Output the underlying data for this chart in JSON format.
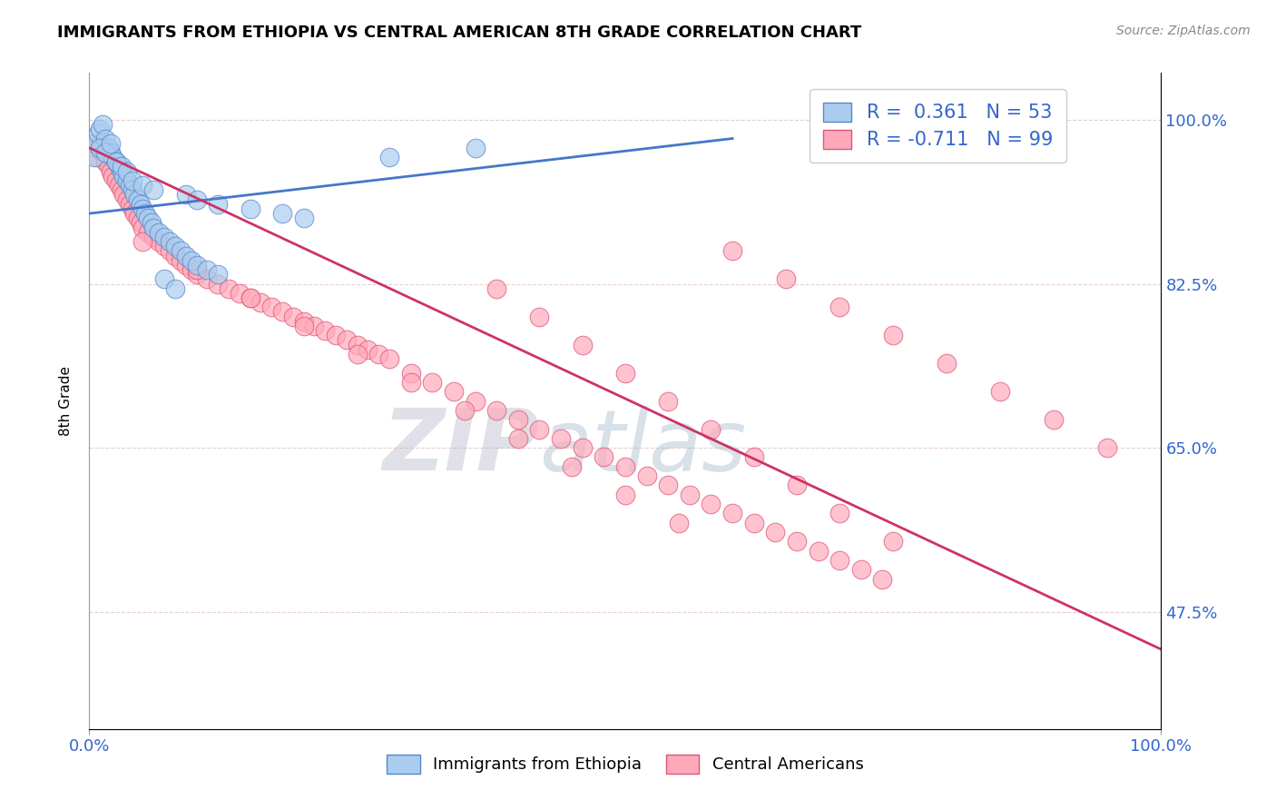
{
  "title": "IMMIGRANTS FROM ETHIOPIA VS CENTRAL AMERICAN 8TH GRADE CORRELATION CHART",
  "source_text": "Source: ZipAtlas.com",
  "ylabel": "8th Grade",
  "xlim": [
    0.0,
    1.0
  ],
  "ylim": [
    0.35,
    1.05
  ],
  "x_tick_labels": [
    "0.0%",
    "100.0%"
  ],
  "y_ticks": [
    0.475,
    0.65,
    0.825,
    1.0
  ],
  "y_tick_labels": [
    "47.5%",
    "65.0%",
    "82.5%",
    "100.0%"
  ],
  "watermark_zip": "ZIP",
  "watermark_atlas": "atlas",
  "blue_color": "#aaccee",
  "pink_color": "#ffaabb",
  "blue_edge_color": "#5588cc",
  "pink_edge_color": "#dd5577",
  "blue_line_color": "#4477cc",
  "pink_line_color": "#cc3366",
  "legend_r1": "R =  0.361",
  "legend_n1": "N = 53",
  "legend_r2": "R = -0.711",
  "legend_n2": "N = 99",
  "blue_scatter_x": [
    0.005,
    0.008,
    0.01,
    0.012,
    0.015,
    0.018,
    0.02,
    0.022,
    0.025,
    0.028,
    0.03,
    0.032,
    0.035,
    0.038,
    0.04,
    0.042,
    0.045,
    0.048,
    0.05,
    0.052,
    0.055,
    0.058,
    0.06,
    0.065,
    0.07,
    0.075,
    0.08,
    0.085,
    0.09,
    0.095,
    0.1,
    0.11,
    0.12,
    0.005,
    0.01,
    0.015,
    0.02,
    0.025,
    0.03,
    0.035,
    0.04,
    0.05,
    0.06,
    0.07,
    0.08,
    0.09,
    0.1,
    0.12,
    0.15,
    0.18,
    0.2,
    0.28,
    0.36
  ],
  "blue_scatter_y": [
    0.975,
    0.985,
    0.99,
    0.995,
    0.98,
    0.97,
    0.965,
    0.96,
    0.955,
    0.95,
    0.945,
    0.94,
    0.935,
    0.93,
    0.925,
    0.92,
    0.915,
    0.91,
    0.905,
    0.9,
    0.895,
    0.89,
    0.885,
    0.88,
    0.875,
    0.87,
    0.865,
    0.86,
    0.855,
    0.85,
    0.845,
    0.84,
    0.835,
    0.96,
    0.97,
    0.965,
    0.975,
    0.955,
    0.95,
    0.945,
    0.935,
    0.93,
    0.925,
    0.83,
    0.82,
    0.92,
    0.915,
    0.91,
    0.905,
    0.9,
    0.895,
    0.96,
    0.97
  ],
  "pink_scatter_x": [
    0.005,
    0.008,
    0.01,
    0.012,
    0.015,
    0.018,
    0.02,
    0.022,
    0.025,
    0.028,
    0.03,
    0.032,
    0.035,
    0.038,
    0.04,
    0.042,
    0.045,
    0.048,
    0.05,
    0.055,
    0.06,
    0.065,
    0.07,
    0.075,
    0.08,
    0.085,
    0.09,
    0.095,
    0.1,
    0.11,
    0.12,
    0.13,
    0.14,
    0.15,
    0.16,
    0.17,
    0.18,
    0.19,
    0.2,
    0.21,
    0.22,
    0.23,
    0.24,
    0.25,
    0.26,
    0.27,
    0.28,
    0.3,
    0.32,
    0.34,
    0.36,
    0.38,
    0.4,
    0.42,
    0.44,
    0.46,
    0.48,
    0.5,
    0.52,
    0.54,
    0.56,
    0.58,
    0.6,
    0.62,
    0.64,
    0.66,
    0.68,
    0.7,
    0.72,
    0.74,
    0.05,
    0.1,
    0.15,
    0.2,
    0.25,
    0.3,
    0.35,
    0.4,
    0.45,
    0.5,
    0.55,
    0.6,
    0.65,
    0.7,
    0.75,
    0.8,
    0.85,
    0.9,
    0.95,
    0.38,
    0.42,
    0.46,
    0.5,
    0.54,
    0.58,
    0.62,
    0.66,
    0.7,
    0.75
  ],
  "pink_scatter_y": [
    0.97,
    0.96,
    0.975,
    0.965,
    0.955,
    0.95,
    0.945,
    0.94,
    0.935,
    0.93,
    0.925,
    0.92,
    0.915,
    0.91,
    0.905,
    0.9,
    0.895,
    0.89,
    0.885,
    0.88,
    0.875,
    0.87,
    0.865,
    0.86,
    0.855,
    0.85,
    0.845,
    0.84,
    0.835,
    0.83,
    0.825,
    0.82,
    0.815,
    0.81,
    0.805,
    0.8,
    0.795,
    0.79,
    0.785,
    0.78,
    0.775,
    0.77,
    0.765,
    0.76,
    0.755,
    0.75,
    0.745,
    0.73,
    0.72,
    0.71,
    0.7,
    0.69,
    0.68,
    0.67,
    0.66,
    0.65,
    0.64,
    0.63,
    0.62,
    0.61,
    0.6,
    0.59,
    0.58,
    0.57,
    0.56,
    0.55,
    0.54,
    0.53,
    0.52,
    0.51,
    0.87,
    0.84,
    0.81,
    0.78,
    0.75,
    0.72,
    0.69,
    0.66,
    0.63,
    0.6,
    0.57,
    0.86,
    0.83,
    0.8,
    0.77,
    0.74,
    0.71,
    0.68,
    0.65,
    0.82,
    0.79,
    0.76,
    0.73,
    0.7,
    0.67,
    0.64,
    0.61,
    0.58,
    0.55
  ],
  "blue_trend_x": [
    0.0,
    0.6
  ],
  "blue_trend_y": [
    0.9,
    0.98
  ],
  "pink_trend_x": [
    0.0,
    1.0
  ],
  "pink_trend_y": [
    0.97,
    0.435
  ]
}
